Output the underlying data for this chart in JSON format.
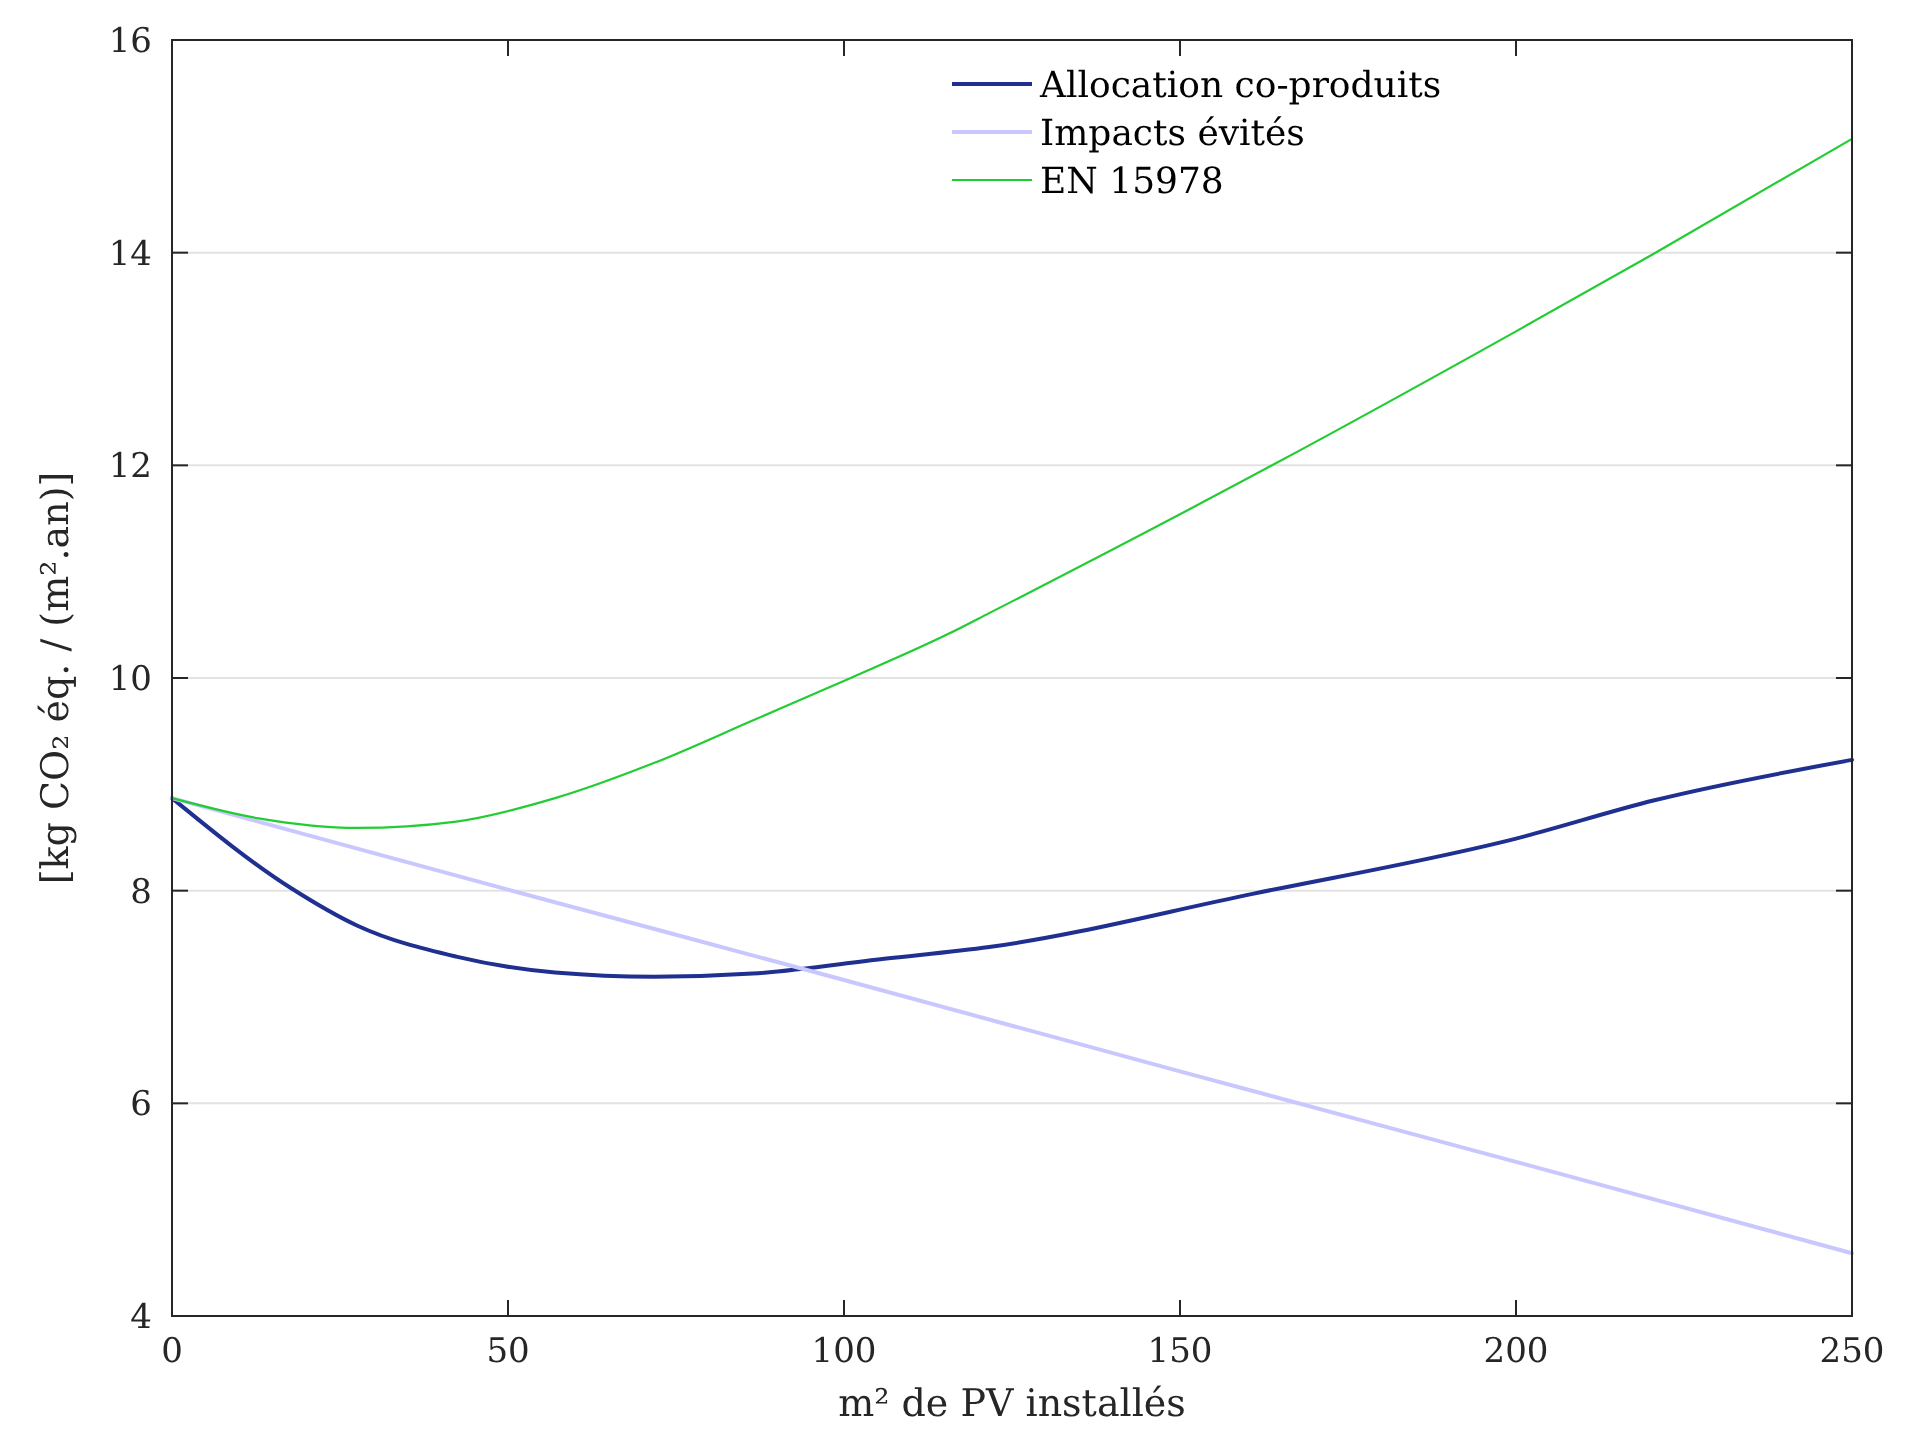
{
  "chart_data": {
    "type": "line",
    "xlabel": "m² de PV installés",
    "ylabel": "[kg CO₂ éq. / (m².an)]",
    "xlim": [
      0,
      250
    ],
    "xticks": [
      0,
      50,
      100,
      150,
      200,
      250
    ],
    "ylim": [
      4,
      16
    ],
    "yticks": [
      4,
      6,
      8,
      10,
      12,
      14,
      16
    ],
    "grid": "y",
    "legend": "top right",
    "line_style": "solid",
    "marker": "none",
    "series": [
      {
        "name": "Allocation co-produits",
        "color": "#1f3091",
        "x": [
          0,
          17.8,
          27.6,
          42.3,
          57,
          71.7,
          86.4,
          106,
          121.6,
          160.8,
          200,
          220.6,
          250
        ],
        "values": [
          8.87,
          8.02,
          7.67,
          7.38,
          7.23,
          7.19,
          7.22,
          7.36,
          7.47,
          7.97,
          8.49,
          8.85,
          9.23
        ]
      },
      {
        "name": "Impacts évités",
        "color": "#c8c8ff",
        "x": [
          0,
          50,
          100,
          150,
          200,
          250
        ],
        "values": [
          8.87,
          8.01,
          7.16,
          6.3,
          5.45,
          4.59
        ]
      },
      {
        "name": "EN 15978",
        "color": "#22cc33",
        "x": [
          0,
          12.9,
          27.6,
          42.3,
          57,
          71.7,
          86.4,
          101,
          115.7,
          121.6,
          163.7,
          200,
          220.5,
          250
        ],
        "values": [
          8.87,
          8.68,
          8.59,
          8.65,
          8.87,
          9.2,
          9.6,
          10.0,
          10.42,
          10.61,
          12.0,
          13.26,
          13.99,
          15.07
        ]
      }
    ]
  }
}
